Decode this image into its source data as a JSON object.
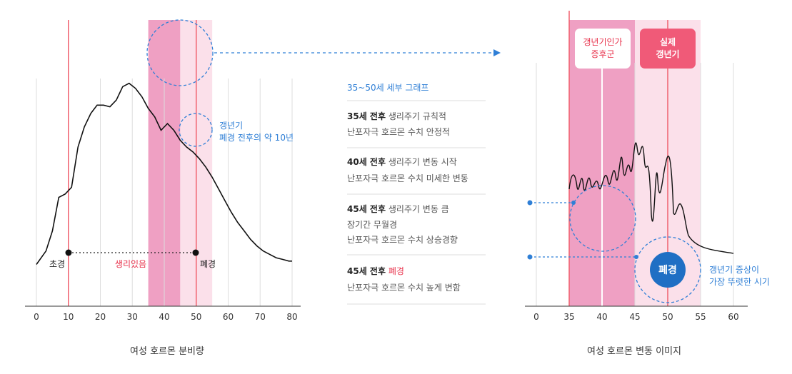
{
  "left_chart": {
    "caption": "여성 호르몬 분비량",
    "annotation_lines": [
      "갱년기",
      "폐경 전후의 약 10년"
    ],
    "label_start": "초경",
    "label_end": "폐경",
    "label_middle": "생리있음",
    "colors": {
      "band_dark": "#efa0c3",
      "band_light": "#fbe0ea",
      "marker_line": "#f0606e",
      "accent_red": "#e8304a",
      "accent_blue": "#2f7fd6",
      "grid": "#dddddd",
      "curve": "#111111"
    }
  },
  "right_chart": {
    "caption": "여성 호르몬 변동 이미지",
    "box1_lines": [
      "갱년기인가",
      "증후군"
    ],
    "box2_lines": [
      "실제",
      "갱년기"
    ],
    "circle_label": "폐경",
    "annotation_lines": [
      "갱년기 증상이",
      "가장 뚜렷한 시기"
    ]
  },
  "middle": {
    "heading": "35~50세 세부 그래프",
    "items": [
      {
        "bold": "35세 전후",
        "rest": " 생리주기 규칙적",
        "line2": "난포자극 호르몬 수치 안정적"
      },
      {
        "bold": "40세 전후",
        "rest": " 생리주기 변동 시작",
        "line2": "난포자극 호르몬 수치 미세한 변동"
      },
      {
        "bold": "45세 전후",
        "rest": " 생리주기 변동 큼",
        "line2": "장기간 무월경",
        "line3": "난포자극 호르몬 수치 상승경향"
      },
      {
        "bold": "45세 전후",
        "red": "폐경",
        "line2": "난포자극 호르몬 수치 높게 변함"
      }
    ]
  },
  "chart_data": [
    {
      "type": "line",
      "title": "여성 호르몬 분비량",
      "x_ticks": [
        0,
        10,
        20,
        30,
        40,
        50,
        60,
        70,
        80
      ],
      "xlim": [
        0,
        80
      ],
      "grid": true,
      "bands": [
        {
          "from": 35,
          "to": 45,
          "shade": "dark"
        },
        {
          "from": 45,
          "to": 55,
          "shade": "light"
        }
      ],
      "markers": [
        {
          "x": 10,
          "label": "초경"
        },
        {
          "x": 50,
          "label": "폐경"
        }
      ],
      "x": [
        0,
        3,
        5,
        7,
        9,
        11,
        13,
        15,
        17,
        19,
        21,
        23,
        25,
        27,
        29,
        31,
        33,
        35,
        37,
        39,
        41,
        43,
        45,
        47,
        49,
        51,
        53,
        55,
        57,
        59,
        61,
        63,
        65,
        67,
        69,
        71,
        73,
        75,
        77,
        79,
        80
      ],
      "y": [
        10,
        18,
        30,
        50,
        52,
        56,
        80,
        92,
        100,
        105,
        105,
        104,
        108,
        116,
        118,
        115,
        110,
        103,
        98,
        90,
        94,
        90,
        84,
        80,
        77,
        73,
        68,
        62,
        55,
        48,
        41,
        35,
        30,
        25,
        21,
        18,
        16,
        14,
        13,
        12,
        12
      ]
    },
    {
      "type": "line",
      "title": "여성 호르몬 변동 이미지",
      "x_ticks": [
        0,
        35,
        40,
        45,
        50,
        55,
        60
      ],
      "grid": true,
      "bands": [
        {
          "from": 35,
          "to": 45,
          "shade": "dark"
        },
        {
          "from": 45,
          "to": 55,
          "shade": "light"
        }
      ],
      "markers": [
        {
          "x": 35
        },
        {
          "x": 50,
          "label": "폐경"
        }
      ]
    }
  ]
}
